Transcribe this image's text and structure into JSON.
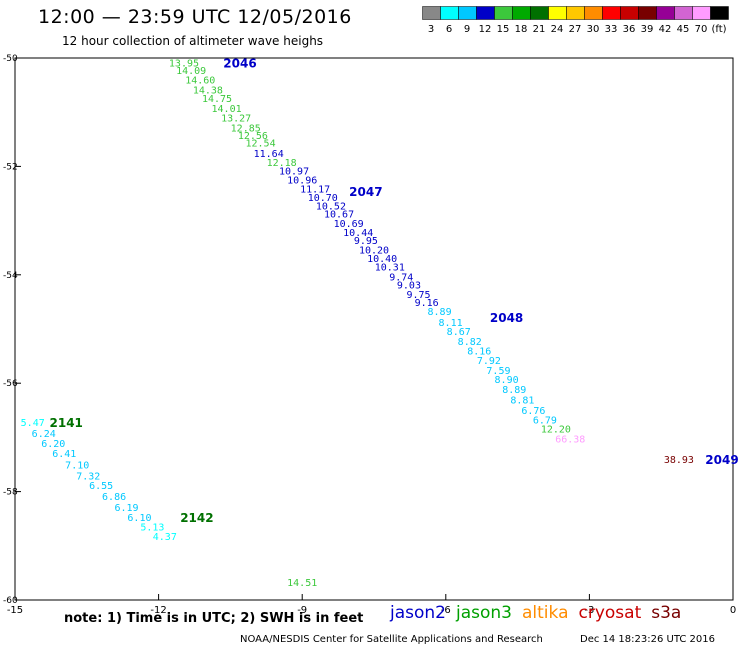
{
  "header": {
    "title": "12:00 — 23:59 UTC 12/05/2016",
    "subtitle": "12 hour collection of altimeter wave heighs"
  },
  "scale": {
    "labels": [
      "3",
      "6",
      "9",
      "12",
      "15",
      "18",
      "21",
      "24",
      "27",
      "30",
      "33",
      "36",
      "39",
      "42",
      "45",
      "70",
      "(ft)"
    ],
    "colors": [
      "#888888",
      "#00ffff",
      "#00c8ff",
      "#0000c8",
      "#3cc83c",
      "#00aa00",
      "#007000",
      "#ffff00",
      "#ffc800",
      "#ff8c00",
      "#ff0000",
      "#c80000",
      "#780000",
      "#960096",
      "#d264d2",
      "#ff9cff",
      "#000000"
    ]
  },
  "footer": {
    "note": "note: 1) Time is in UTC; 2) SWH is in feet",
    "satellites": [
      {
        "name": "jason2",
        "color": "#0000c8"
      },
      {
        "name": "jason3",
        "color": "#00a000"
      },
      {
        "name": "altika",
        "color": "#ff8c00"
      },
      {
        "name": "cryosat",
        "color": "#c80000"
      },
      {
        "name": "s3a",
        "color": "#780000"
      }
    ],
    "credit": "NOAA/NESDIS Center for Satellite Applications and Research",
    "timestamp": "Dec 14 18:23:26 UTC 2016"
  },
  "chart_data": {
    "type": "scatter",
    "title": "12:00 — 23:59 UTC 12/05/2016",
    "subtitle": "12 hour collection of altimeter wave heighs",
    "xlim": [
      -15,
      0
    ],
    "ylim": [
      -60,
      -50
    ],
    "x_ticks": [
      -15,
      -12,
      -9,
      -6,
      -3,
      0
    ],
    "y_ticks": [
      -50,
      -52,
      -54,
      -56,
      -58,
      -60
    ],
    "grid": false,
    "series": [
      {
        "name": "jason2",
        "points": [
          {
            "x": -11.47,
            "y": -50.08,
            "swh": "13.95",
            "color": "#3cc83c"
          },
          {
            "x": -11.32,
            "y": -50.22,
            "swh": "14.09",
            "color": "#3cc83c"
          },
          {
            "x": -11.13,
            "y": -50.4,
            "swh": "14.60",
            "color": "#3cc83c"
          },
          {
            "x": -10.97,
            "y": -50.58,
            "swh": "14.38",
            "color": "#3cc83c"
          },
          {
            "x": -10.78,
            "y": -50.74,
            "swh": "14.75",
            "color": "#3cc83c"
          },
          {
            "x": -10.58,
            "y": -50.92,
            "swh": "14.01",
            "color": "#3cc83c"
          },
          {
            "x": -10.38,
            "y": -51.1,
            "swh": "13.27",
            "color": "#3cc83c"
          },
          {
            "x": -10.18,
            "y": -51.28,
            "swh": "12.85",
            "color": "#3cc83c"
          },
          {
            "x": -10.03,
            "y": -51.42,
            "swh": "12.56",
            "color": "#3cc83c"
          },
          {
            "x": -9.87,
            "y": -51.56,
            "swh": "12.54",
            "color": "#3cc83c"
          },
          {
            "x": -9.7,
            "y": -51.75,
            "swh": "11.64",
            "color": "#0000c8"
          },
          {
            "x": -9.43,
            "y": -51.92,
            "swh": "12.18",
            "color": "#3cc83c"
          },
          {
            "x": -9.17,
            "y": -52.08,
            "swh": "10.97",
            "color": "#0000c8"
          },
          {
            "x": -9.0,
            "y": -52.24,
            "swh": "10.96",
            "color": "#0000c8"
          },
          {
            "x": -8.73,
            "y": -52.41,
            "swh": "11.17",
            "color": "#0000c8"
          },
          {
            "x": -8.57,
            "y": -52.56,
            "swh": "10.70",
            "color": "#0000c8"
          },
          {
            "x": -8.4,
            "y": -52.72,
            "swh": "10.52",
            "color": "#0000c8"
          },
          {
            "x": -8.23,
            "y": -52.87,
            "swh": "10.67",
            "color": "#0000c8"
          },
          {
            "x": -8.03,
            "y": -53.04,
            "swh": "10.69",
            "color": "#0000c8"
          },
          {
            "x": -7.83,
            "y": -53.21,
            "swh": "10.44",
            "color": "#0000c8"
          },
          {
            "x": -7.67,
            "y": -53.36,
            "swh": "9.95",
            "color": "#0000c8"
          },
          {
            "x": -7.5,
            "y": -53.53,
            "swh": "10.20",
            "color": "#0000c8"
          },
          {
            "x": -7.33,
            "y": -53.69,
            "swh": "10.40",
            "color": "#0000c8"
          },
          {
            "x": -7.17,
            "y": -53.85,
            "swh": "10.31",
            "color": "#0000c8"
          },
          {
            "x": -6.93,
            "y": -54.03,
            "swh": "9.74",
            "color": "#0000c8"
          },
          {
            "x": -6.77,
            "y": -54.18,
            "swh": "9.03",
            "color": "#0000c8"
          },
          {
            "x": -6.57,
            "y": -54.35,
            "swh": "9.75",
            "color": "#0000c8"
          },
          {
            "x": -6.4,
            "y": -54.5,
            "swh": "9.16",
            "color": "#0000c8"
          },
          {
            "x": -6.13,
            "y": -54.67,
            "swh": "8.89",
            "color": "#00c8ff"
          },
          {
            "x": -5.9,
            "y": -54.87,
            "swh": "8.11",
            "color": "#00c8ff"
          },
          {
            "x": -5.73,
            "y": -55.04,
            "swh": "8.67",
            "color": "#00c8ff"
          },
          {
            "x": -5.5,
            "y": -55.22,
            "swh": "8.82",
            "color": "#00c8ff"
          },
          {
            "x": -5.3,
            "y": -55.4,
            "swh": "8.16",
            "color": "#00c8ff"
          },
          {
            "x": -5.1,
            "y": -55.57,
            "swh": "7.92",
            "color": "#00c8ff"
          },
          {
            "x": -4.9,
            "y": -55.76,
            "swh": "7.59",
            "color": "#00c8ff"
          },
          {
            "x": -4.73,
            "y": -55.92,
            "swh": "8.90",
            "color": "#00c8ff"
          },
          {
            "x": -4.57,
            "y": -56.11,
            "swh": "8.89",
            "color": "#00c8ff"
          },
          {
            "x": -4.4,
            "y": -56.3,
            "swh": "8.81",
            "color": "#00c8ff"
          },
          {
            "x": -4.17,
            "y": -56.49,
            "swh": "6.76",
            "color": "#00c8ff"
          },
          {
            "x": -3.93,
            "y": -56.67,
            "swh": "6.79",
            "color": "#00c8ff"
          },
          {
            "x": -3.7,
            "y": -56.84,
            "swh": "12.20",
            "color": "#3cc83c"
          },
          {
            "x": -3.4,
            "y": -57.02,
            "swh": "66.38",
            "color": "#ff9cff"
          },
          {
            "x": -1.13,
            "y": -57.4,
            "swh": "38.93",
            "color": "#780000"
          }
        ]
      },
      {
        "name": "jason3",
        "points": [
          {
            "x": -14.63,
            "y": -56.72,
            "swh": "5.47",
            "color": "#00ffff"
          },
          {
            "x": -14.4,
            "y": -56.92,
            "swh": "6.24",
            "color": "#00c8ff"
          },
          {
            "x": -14.2,
            "y": -57.1,
            "swh": "6.20",
            "color": "#00c8ff"
          },
          {
            "x": -13.97,
            "y": -57.29,
            "swh": "6.41",
            "color": "#00c8ff"
          },
          {
            "x": -13.7,
            "y": -57.5,
            "swh": "7.10",
            "color": "#00c8ff"
          },
          {
            "x": -13.47,
            "y": -57.7,
            "swh": "7.32",
            "color": "#00c8ff"
          },
          {
            "x": -13.2,
            "y": -57.88,
            "swh": "6.55",
            "color": "#00c8ff"
          },
          {
            "x": -12.93,
            "y": -58.08,
            "swh": "6.86",
            "color": "#00c8ff"
          },
          {
            "x": -12.67,
            "y": -58.28,
            "swh": "6.19",
            "color": "#00c8ff"
          },
          {
            "x": -12.4,
            "y": -58.47,
            "swh": "6.10",
            "color": "#00c8ff"
          },
          {
            "x": -12.13,
            "y": -58.64,
            "swh": "5.13",
            "color": "#00ffff"
          },
          {
            "x": -11.87,
            "y": -58.82,
            "swh": "4.37",
            "color": "#00ffff"
          },
          {
            "x": -9.0,
            "y": -59.67,
            "swh": "14.51",
            "color": "#3cc83c"
          }
        ]
      }
    ],
    "time_labels": [
      {
        "text": "2046",
        "x": -10.3,
        "y": -50.08,
        "color": "#0000c8"
      },
      {
        "text": "2047",
        "x": -7.67,
        "y": -52.45,
        "color": "#0000c8"
      },
      {
        "text": "2048",
        "x": -4.73,
        "y": -54.78,
        "color": "#0000c8"
      },
      {
        "text": "2049",
        "x": -0.23,
        "y": -57.4,
        "color": "#0000c8"
      },
      {
        "text": "2141",
        "x": -13.93,
        "y": -56.72,
        "color": "#007000"
      },
      {
        "text": "2142",
        "x": -11.2,
        "y": -58.47,
        "color": "#007000"
      }
    ]
  }
}
